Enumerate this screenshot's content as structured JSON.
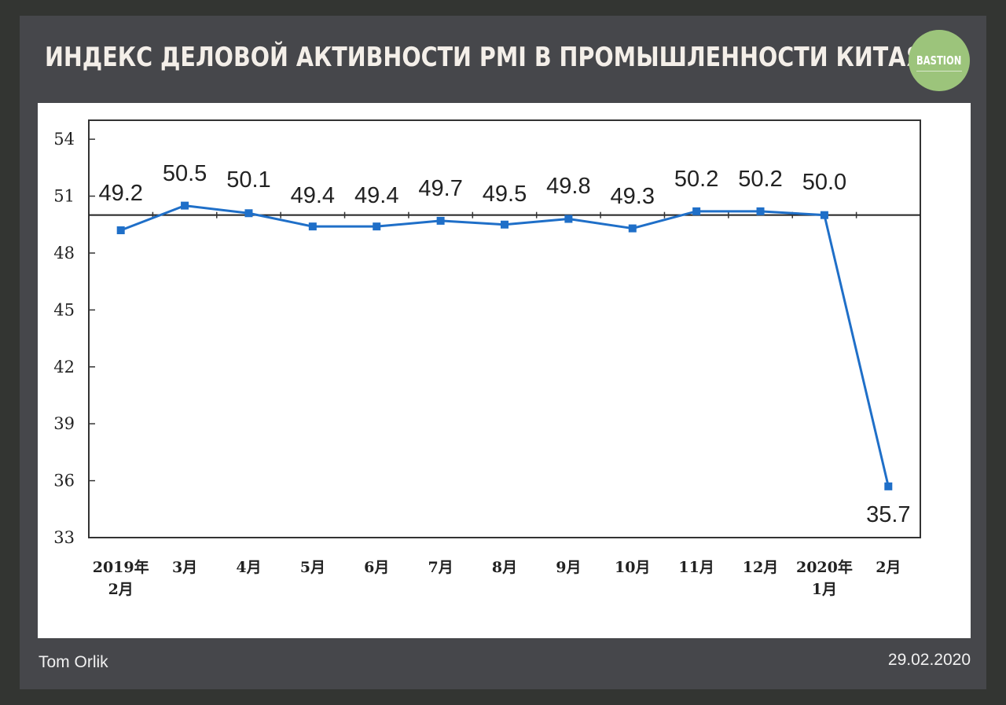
{
  "header": {
    "title": "ИНДЕКС ДЕЛОВОЙ АКТИВНОСТИ PMI В ПРОМЫШЛЕННОСТИ КИТАЯ",
    "logo_text": "BASTION"
  },
  "footer": {
    "author": "Tom Orlik",
    "date": "29.02.2020"
  },
  "colors": {
    "background": "#333532",
    "card": "#46474b",
    "logo": "#9cc47b",
    "line": "#1f6fc8",
    "reference_line": "#222222"
  },
  "chart_data": {
    "type": "line",
    "title": "",
    "xlabel": "",
    "ylabel": "",
    "categories": [
      [
        "2019年",
        "2月"
      ],
      [
        "3月"
      ],
      [
        "4月"
      ],
      [
        "5月"
      ],
      [
        "6月"
      ],
      [
        "7月"
      ],
      [
        "8月"
      ],
      [
        "9月"
      ],
      [
        "10月"
      ],
      [
        "11月"
      ],
      [
        "12月"
      ],
      [
        "2020年",
        "1月"
      ],
      [
        "2月"
      ]
    ],
    "series": [
      {
        "values": [
          49.2,
          50.5,
          50.1,
          49.4,
          49.4,
          49.7,
          49.5,
          49.8,
          49.3,
          50.2,
          50.2,
          50.0,
          35.7
        ]
      }
    ],
    "data_labels": [
      "49.2",
      "50.5",
      "50.1",
      "49.4",
      "49.4",
      "49.7",
      "49.5",
      "49.8",
      "49.3",
      "50.2",
      "50.2",
      "50.0",
      "35.7"
    ],
    "ylim": [
      33,
      55
    ],
    "yticks": [
      33,
      36,
      39,
      42,
      45,
      48,
      51,
      54
    ],
    "reference_line": 50,
    "grid": false,
    "legend": "none"
  }
}
